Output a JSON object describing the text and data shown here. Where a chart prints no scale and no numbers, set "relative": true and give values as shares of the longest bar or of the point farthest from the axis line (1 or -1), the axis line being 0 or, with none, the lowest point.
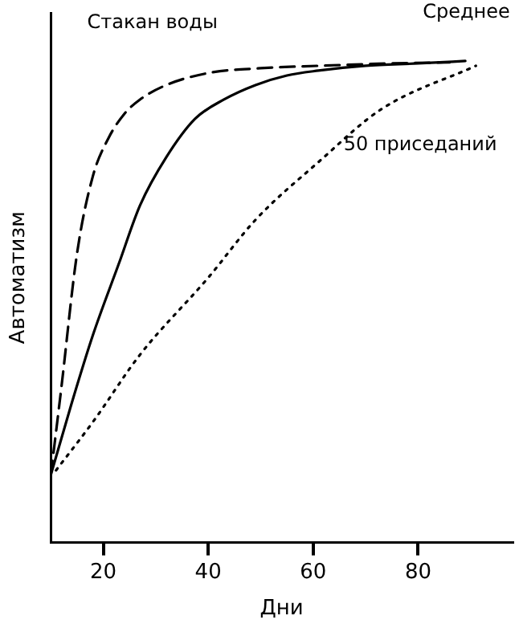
{
  "chart_data": {
    "type": "line",
    "relative": true,
    "xlabel": "Дни",
    "ylabel": "Автоматизм",
    "xlim": [
      10,
      98
    ],
    "xticks": [
      20,
      40,
      60,
      80
    ],
    "grid": false,
    "legend": false,
    "marker": "none",
    "series": [
      {
        "name": "Стакан воды",
        "color": "#000000",
        "line_style": "dashed",
        "x": [
          10,
          12,
          15,
          18,
          21,
          24,
          27,
          32,
          40,
          50,
          61,
          75,
          86
        ],
        "values": [
          0.14,
          0.32,
          0.6,
          0.76,
          0.84,
          0.89,
          0.92,
          0.95,
          0.975,
          0.985,
          0.99,
          0.995,
          0.997
        ]
      },
      {
        "name": "Среднее",
        "color": "#000000",
        "line_style": "solid",
        "x": [
          10,
          14,
          18,
          23,
          27,
          32,
          37.5,
          43,
          49,
          55,
          61,
          70,
          80,
          89
        ],
        "values": [
          0.14,
          0.29,
          0.43,
          0.58,
          0.7,
          0.8,
          0.88,
          0.92,
          0.95,
          0.97,
          0.98,
          0.99,
          0.995,
          1
        ]
      },
      {
        "name": "50 приседаний",
        "color": "#000000",
        "line_style": "dotted",
        "x": [
          11,
          18,
          27,
          40,
          49,
          61,
          73,
          91
        ],
        "values": [
          0.15,
          0.25,
          0.39,
          0.55,
          0.67,
          0.79,
          0.9,
          0.99
        ]
      }
    ]
  }
}
